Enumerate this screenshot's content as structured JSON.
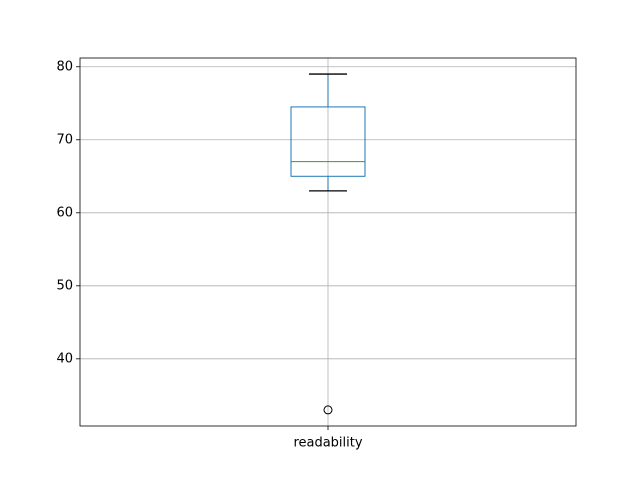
{
  "chart_data": {
    "type": "box",
    "categories": [
      "readability"
    ],
    "boxes": [
      {
        "whislo": 63,
        "q1": 65,
        "med": 67,
        "q3": 74.5,
        "whishi": 79,
        "fliers": [
          33
        ]
      }
    ],
    "color": "#1f77b4",
    "median_color": "#2ca02c",
    "cap_color": "#000000",
    "ylim": [
      30.8,
      81.2
    ],
    "yticks": [
      40,
      50,
      60,
      70,
      80
    ],
    "grid": true
  }
}
